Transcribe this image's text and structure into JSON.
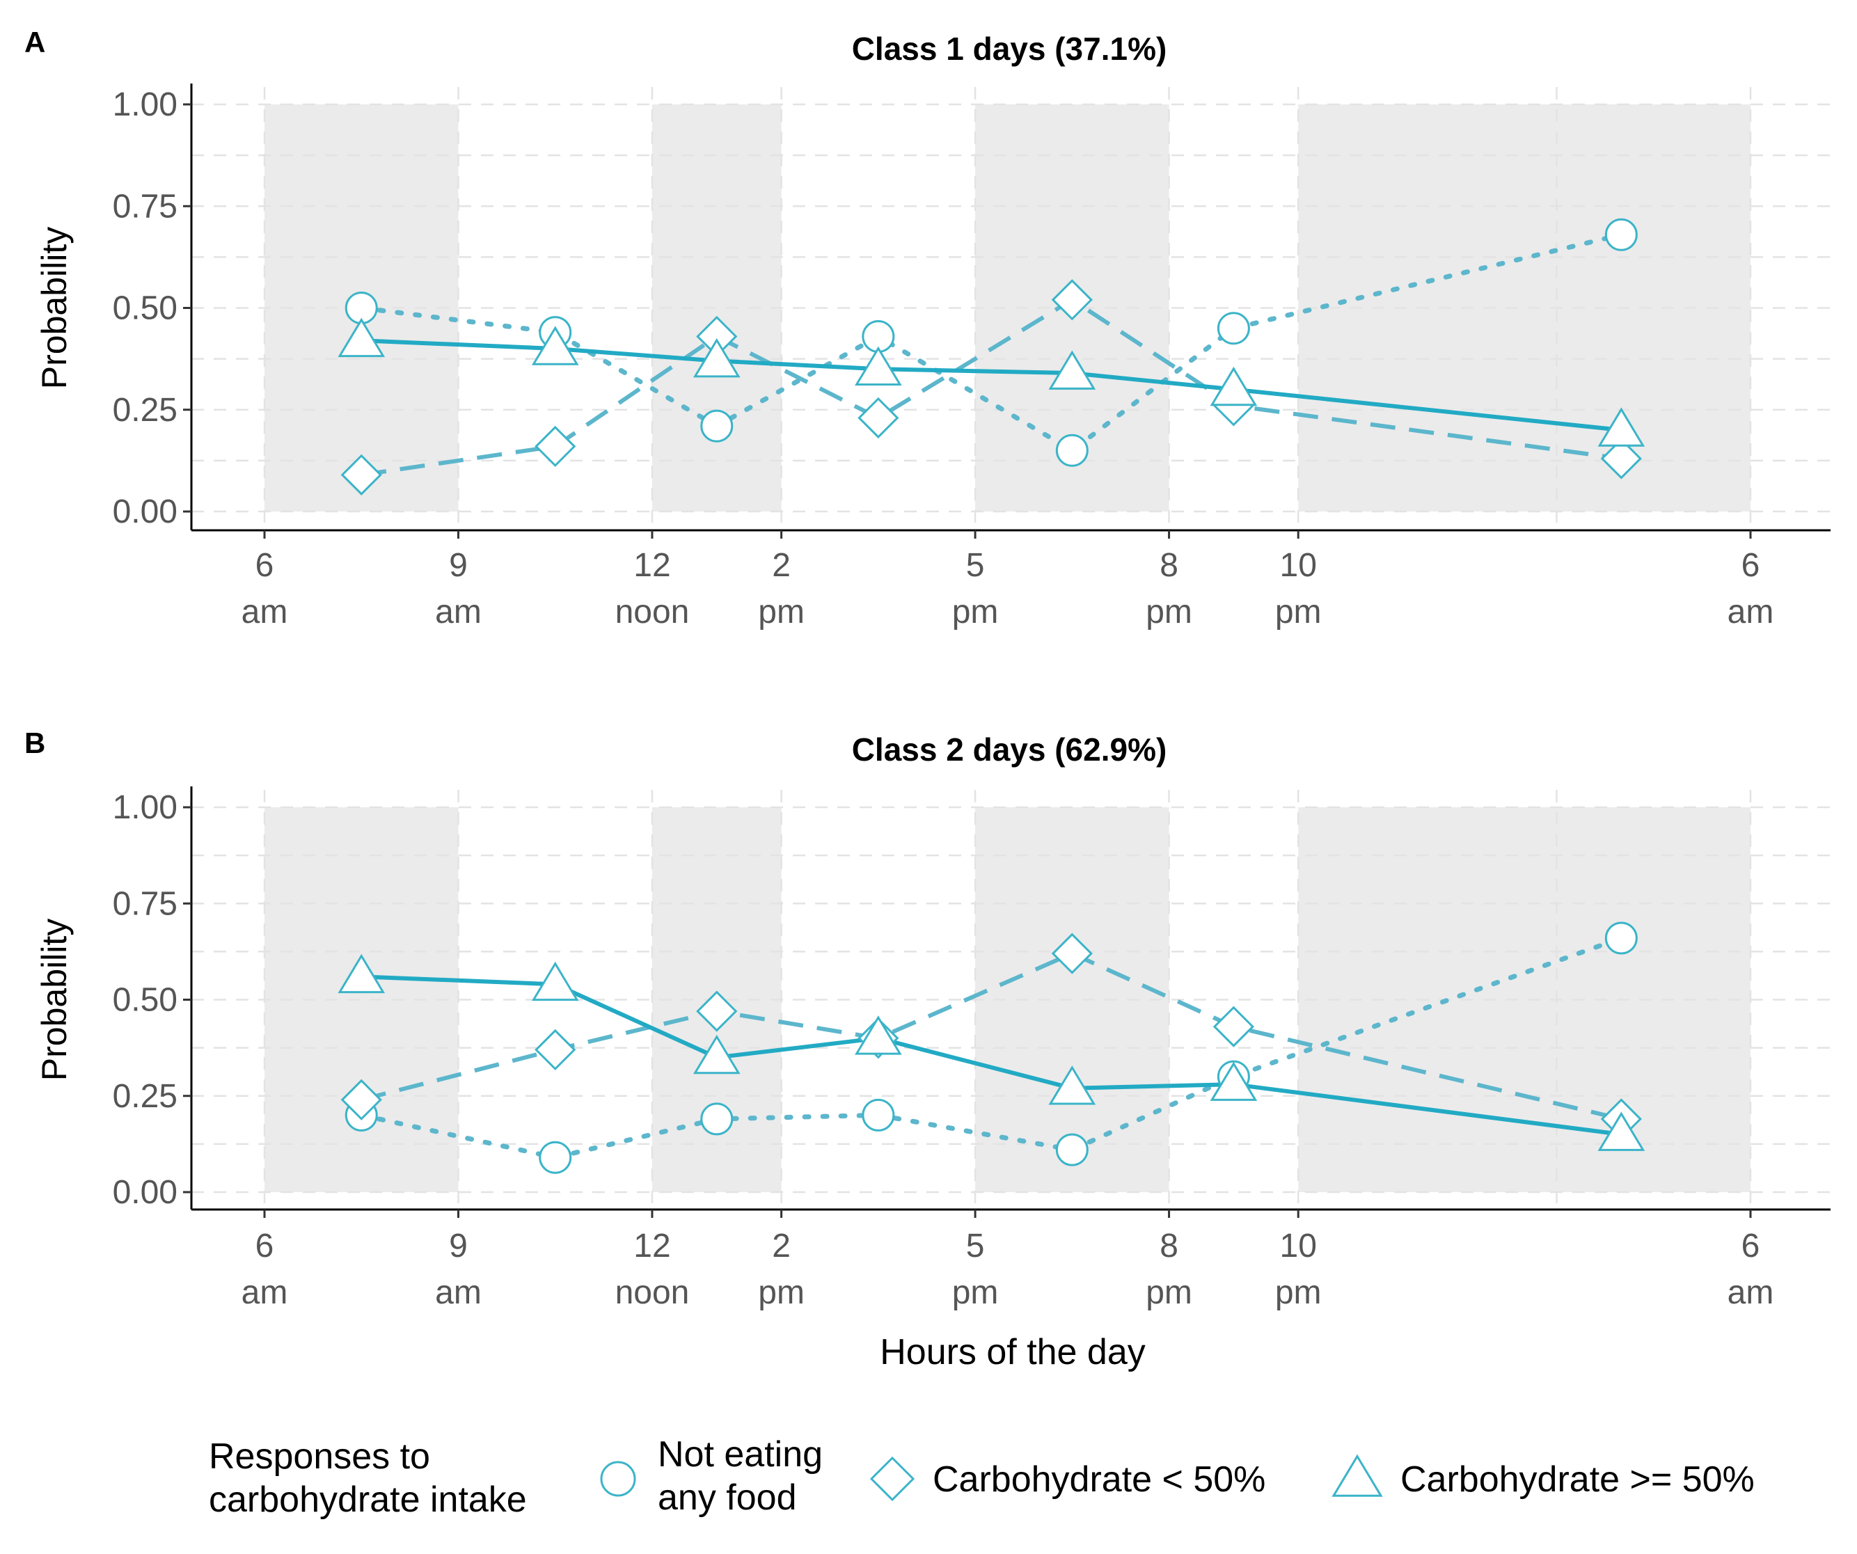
{
  "chart_data": [
    {
      "type": "line",
      "panel_tag": "A",
      "title": "Class 1 days  (37.1%)",
      "xlabel": "",
      "ylabel": "Probability",
      "ylim": [
        0,
        1
      ],
      "yticks": [
        "0.00",
        "0.25",
        "0.50",
        "0.75",
        "1.00"
      ],
      "xticks": [
        {
          "h": 6,
          "line1": "6",
          "line2": "am"
        },
        {
          "h": 9,
          "line1": "9",
          "line2": "am"
        },
        {
          "h": 12,
          "line1": "12",
          "line2": "noon"
        },
        {
          "h": 14,
          "line1": "2",
          "line2": "pm"
        },
        {
          "h": 17,
          "line1": "5",
          "line2": "pm"
        },
        {
          "h": 20,
          "line1": "8",
          "line2": "pm"
        },
        {
          "h": 22,
          "line1": "10",
          "line2": "pm"
        },
        {
          "h": 29,
          "line1": "6",
          "line2": "am"
        }
      ],
      "shaded_periods": [
        [
          6,
          9
        ],
        [
          12,
          14
        ],
        [
          17,
          20
        ],
        [
          22,
          29
        ]
      ],
      "x": [
        7.5,
        10.5,
        13,
        15.5,
        18.5,
        21,
        27
      ],
      "series": [
        {
          "name": "Not eating any food",
          "marker": "circle",
          "linetype": "dotted",
          "values": [
            0.5,
            0.44,
            0.21,
            0.43,
            0.15,
            0.45,
            0.68
          ]
        },
        {
          "name": "Carbohydrate < 50%",
          "marker": "diamond",
          "linetype": "dashed",
          "values": [
            0.09,
            0.16,
            0.43,
            0.23,
            0.52,
            0.26,
            0.13
          ]
        },
        {
          "name": "Carbohydrate >= 50%",
          "marker": "triangle",
          "linetype": "solid",
          "values": [
            0.42,
            0.4,
            0.37,
            0.35,
            0.34,
            0.3,
            0.2
          ]
        }
      ]
    },
    {
      "type": "line",
      "panel_tag": "B",
      "title": "Class 2 days (62.9%)",
      "xlabel": "Hours of the day",
      "ylabel": "Probability",
      "ylim": [
        0,
        1
      ],
      "yticks": [
        "0.00",
        "0.25",
        "0.50",
        "0.75",
        "1.00"
      ],
      "xticks": [
        {
          "h": 6,
          "line1": "6",
          "line2": "am"
        },
        {
          "h": 9,
          "line1": "9",
          "line2": "am"
        },
        {
          "h": 12,
          "line1": "12",
          "line2": "noon"
        },
        {
          "h": 14,
          "line1": "2",
          "line2": "pm"
        },
        {
          "h": 17,
          "line1": "5",
          "line2": "pm"
        },
        {
          "h": 20,
          "line1": "8",
          "line2": "pm"
        },
        {
          "h": 22,
          "line1": "10",
          "line2": "pm"
        },
        {
          "h": 29,
          "line1": "6",
          "line2": "am"
        }
      ],
      "shaded_periods": [
        [
          6,
          9
        ],
        [
          12,
          14
        ],
        [
          17,
          20
        ],
        [
          22,
          29
        ]
      ],
      "x": [
        7.5,
        10.5,
        13,
        15.5,
        18.5,
        21,
        27
      ],
      "series": [
        {
          "name": "Not eating any food",
          "marker": "circle",
          "linetype": "dotted",
          "values": [
            0.2,
            0.09,
            0.19,
            0.2,
            0.11,
            0.3,
            0.66
          ]
        },
        {
          "name": "Carbohydrate < 50%",
          "marker": "diamond",
          "linetype": "dashed",
          "values": [
            0.24,
            0.37,
            0.47,
            0.4,
            0.62,
            0.43,
            0.19
          ]
        },
        {
          "name": "Carbohydrate >= 50%",
          "marker": "triangle",
          "linetype": "solid",
          "values": [
            0.56,
            0.54,
            0.35,
            0.4,
            0.27,
            0.28,
            0.15
          ]
        }
      ]
    }
  ],
  "legend": {
    "title_line1": "Responses to",
    "title_line2": "carbohydrate intake",
    "items": [
      {
        "marker": "circle",
        "line1": "Not eating",
        "line2": "any food"
      },
      {
        "marker": "diamond",
        "line1": "Carbohydrate < 50%",
        "line2": ""
      },
      {
        "marker": "triangle",
        "line1": "Carbohydrate >= 50%",
        "line2": ""
      }
    ]
  },
  "colors": {
    "marker_stroke": "#3bb4c8",
    "line_solid": "#22aac4",
    "line_solid_alt": "#5cb6cc",
    "shade": "#ebebeb",
    "grid": "#e3e3e3"
  }
}
